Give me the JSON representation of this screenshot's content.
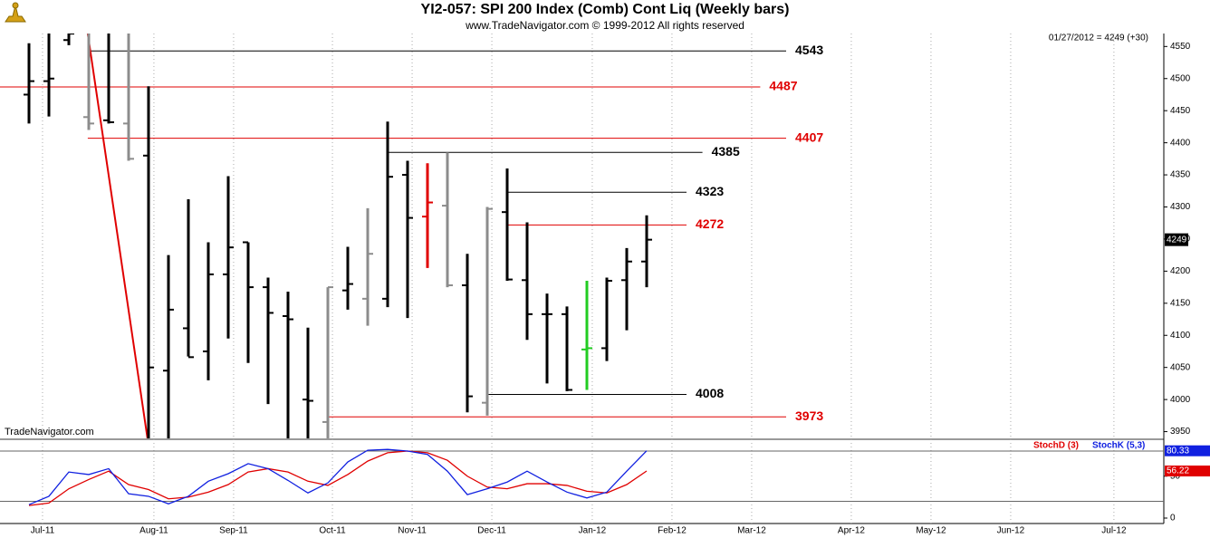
{
  "chart_data": [
    {
      "type": "ohlc",
      "title": "YI2-057:  SPI 200 Index (Comb) Cont Liq  (Weekly bars)",
      "subtitle": "www.TradeNavigator.com © 1999-2012 All rights reserved",
      "last_label": "01/27/2012 = 4249 (+30)",
      "watermark": "TradeNavigator.com",
      "open": [
        4475,
        4496,
        4560,
        4440,
        4435,
        4430,
        4380,
        4045,
        4111,
        4075,
        4195,
        4245,
        4175,
        4130,
        4000,
        3965,
        4170,
        4157,
        4157,
        4350,
        4285,
        4302,
        4178,
        3995,
        4292,
        4186,
        4133,
        4133,
        4078,
        4080,
        4186,
        4215
      ],
      "high": [
        4555,
        4580,
        4600,
        4600,
        4600,
        4600,
        4488,
        4225,
        4312,
        4245,
        4348,
        4245,
        4190,
        4168,
        4112,
        4175,
        4238,
        4298,
        4433,
        4372,
        4368,
        4385,
        4227,
        4300,
        4360,
        4276,
        4165,
        4145,
        4185,
        4190,
        4236,
        4287
      ],
      "low": [
        4430,
        4441,
        4552,
        4420,
        4430,
        4372,
        3937,
        3937,
        4067,
        4030,
        4095,
        4057,
        3993,
        3937,
        3937,
        3937,
        4140,
        4115,
        4144,
        4127,
        4205,
        4175,
        3980,
        3975,
        4185,
        4093,
        4025,
        4013,
        4015,
        4060,
        4108,
        4175
      ],
      "close": [
        4496,
        4500,
        4570,
        4430,
        4432,
        4375,
        4050,
        4140,
        4066,
        4195,
        4237,
        4175,
        4135,
        4125,
        3998,
        4175,
        4180,
        4227,
        4347,
        4283,
        4307,
        4178,
        4005,
        4297,
        4187,
        4133,
        4133,
        4015,
        4080,
        4185,
        4215,
        4249
      ],
      "colors": [
        "#000000",
        "#000000",
        "#000000",
        "#8c8c8c",
        "#000000",
        "#8c8c8c",
        "#000000",
        "#000000",
        "#000000",
        "#000000",
        "#000000",
        "#000000",
        "#000000",
        "#000000",
        "#000000",
        "#8c8c8c",
        "#000000",
        "#8c8c8c",
        "#000000",
        "#000000",
        "#e00000",
        "#8c8c8c",
        "#000000",
        "#8c8c8c",
        "#000000",
        "#000000",
        "#000000",
        "#000000",
        "#22cc22",
        "#000000",
        "#000000",
        "#000000"
      ],
      "xlim": [
        -1.4545,
        56.9545
      ],
      "xticks": [
        {
          "value": 0.68,
          "label": "Jul-11"
        },
        {
          "value": 6.27,
          "label": "Aug-11"
        },
        {
          "value": 10.27,
          "label": "Sep-11"
        },
        {
          "value": 15.23,
          "label": "Oct-11"
        },
        {
          "value": 19.23,
          "label": "Nov-11"
        },
        {
          "value": 23.23,
          "label": "Dec-11"
        },
        {
          "value": 28.27,
          "label": "Jan-12"
        },
        {
          "value": 32.27,
          "label": "Feb-12"
        },
        {
          "value": 36.27,
          "label": "Mar-12"
        },
        {
          "value": 41.27,
          "label": "Apr-12"
        },
        {
          "value": 45.27,
          "label": "May-12"
        },
        {
          "value": 49.27,
          "label": "Jun-12"
        },
        {
          "value": 54.45,
          "label": "Jul-12"
        }
      ],
      "ylim": [
        3939.5,
        4570.2
      ],
      "yticks": [
        3950,
        4000,
        4050,
        4100,
        4150,
        4200,
        4250,
        4300,
        4350,
        4400,
        4450,
        4500,
        4550
      ],
      "levels": [
        {
          "value": 4543,
          "color": "#000000",
          "from": 2.95,
          "to": 38
        },
        {
          "value": 4487,
          "color": "#e00000",
          "from": -1.4545,
          "to": 36.7
        },
        {
          "value": 4407,
          "color": "#e00000",
          "from": 2.95,
          "to": 38
        },
        {
          "value": 4385,
          "color": "#000000",
          "from": 17.95,
          "to": 33.8
        },
        {
          "value": 4323,
          "color": "#000000",
          "from": 23.95,
          "to": 33
        },
        {
          "value": 4272,
          "color": "#e00000",
          "from": 23.95,
          "to": 33
        },
        {
          "value": 4008,
          "color": "#000000",
          "from": 22.95,
          "to": 33
        },
        {
          "value": 3973,
          "color": "#e00000",
          "from": 15,
          "to": 38
        }
      ],
      "trendline": {
        "color": "#e00000",
        "x": [
          2.95,
          5.95
        ],
        "y": [
          4570,
          3939
        ]
      }
    },
    {
      "type": "line",
      "ylim": [
        -6.5,
        93
      ],
      "yticks": [
        0,
        50
      ],
      "ref_lines": [
        20,
        80
      ],
      "series": [
        {
          "name": "StochD (3)",
          "color": "#e00000",
          "values": [
            15,
            18,
            35,
            46,
            56,
            40,
            34,
            23,
            25,
            31,
            40,
            55,
            59,
            55,
            44,
            39,
            52,
            68,
            78,
            80,
            78,
            69,
            50,
            37,
            35,
            41,
            41,
            39,
            32,
            30,
            40,
            56.22
          ]
        },
        {
          "name": "StochK (5,3)",
          "color": "#1020e0",
          "values": [
            16,
            26,
            55,
            52,
            59,
            29,
            26,
            17,
            26,
            44,
            53,
            65,
            59,
            45,
            30,
            42,
            67,
            81,
            82,
            80,
            76,
            56,
            28,
            35,
            43,
            56,
            43,
            31,
            24,
            31,
            56,
            80.33
          ]
        }
      ]
    }
  ]
}
